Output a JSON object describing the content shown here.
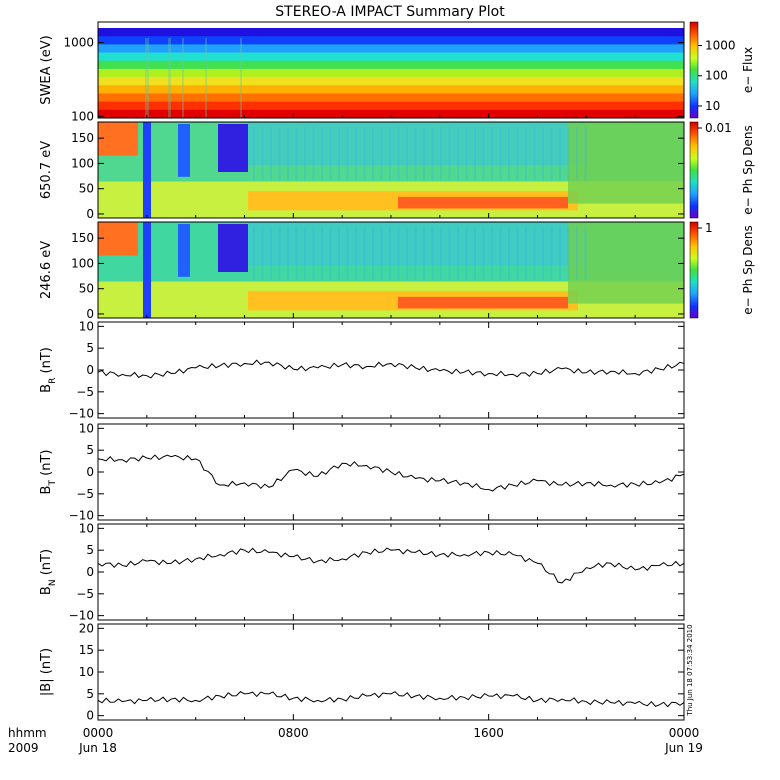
{
  "title": "STEREO-A IMPACT Summary Plot",
  "timestamp": "Thu Jun 18 07:53:34 2010",
  "chart_data": [
    {
      "type": "heatmap",
      "ylabel": "SWEA (eV)",
      "y_scale": "log",
      "ylim": [
        95,
        1900
      ],
      "yticks": [
        {
          "v": 100,
          "label": "100"
        },
        {
          "v": 1000,
          "label": "1000"
        }
      ],
      "colorbar_label": "e− Flux",
      "colorbar_scale": "log",
      "colorbar_ticks": [
        {
          "v": 10,
          "label": "10"
        },
        {
          "v": 100,
          "label": "100"
        },
        {
          "v": 1000,
          "label": "1000"
        }
      ],
      "colorbar_range": [
        4,
        6000
      ]
    },
    {
      "type": "heatmap",
      "ylabel": "650.7 eV",
      "ylim": [
        -8,
        182
      ],
      "yticks": [
        {
          "v": 0,
          "label": "0"
        },
        {
          "v": 50,
          "label": "50"
        },
        {
          "v": 100,
          "label": "100"
        },
        {
          "v": 150,
          "label": "150"
        }
      ],
      "colorbar_label": "e− Ph Sp Dens",
      "colorbar_ticks": [
        {
          "v": 0.01,
          "label": "0.01"
        }
      ]
    },
    {
      "type": "heatmap",
      "ylabel": "246.6 eV",
      "ylim": [
        -8,
        182
      ],
      "yticks": [
        {
          "v": 0,
          "label": "0"
        },
        {
          "v": 50,
          "label": "50"
        },
        {
          "v": 100,
          "label": "100"
        },
        {
          "v": 150,
          "label": "150"
        }
      ],
      "colorbar_label": "e− Ph Sp Dens",
      "colorbar_ticks": [
        {
          "v": 1,
          "label": "1"
        }
      ]
    },
    {
      "type": "line",
      "ylabel": "B",
      "ylabel_sub": "R",
      "ylabel_unit": " (nT)",
      "ylim": [
        -11,
        11
      ],
      "yticks": [
        {
          "v": -10,
          "label": "−10"
        },
        {
          "v": -5,
          "label": "−5"
        },
        {
          "v": 0,
          "label": "0"
        },
        {
          "v": 5,
          "label": "5"
        },
        {
          "v": 10,
          "label": "10"
        }
      ],
      "x": [
        0,
        1,
        2,
        3,
        4,
        5,
        6,
        7,
        8,
        9,
        10,
        11,
        12,
        13,
        14,
        15,
        16,
        17,
        18,
        19,
        20,
        21,
        22,
        23,
        24
      ],
      "values": [
        -0.5,
        -1.0,
        -1.3,
        -0.8,
        0.5,
        1.0,
        1.5,
        1.8,
        0.2,
        0.5,
        1.2,
        0.8,
        1.5,
        0.5,
        -0.2,
        -0.5,
        -0.8,
        -1.0,
        -0.8,
        0.3,
        -0.6,
        -0.3,
        -0.8,
        0.2,
        1.5
      ]
    },
    {
      "type": "line",
      "ylabel": "B",
      "ylabel_sub": "T",
      "ylabel_unit": " (nT)",
      "ylim": [
        -11,
        11
      ],
      "yticks": [
        {
          "v": -10,
          "label": "−10"
        },
        {
          "v": -5,
          "label": "−5"
        },
        {
          "v": 0,
          "label": "0"
        },
        {
          "v": 5,
          "label": "5"
        },
        {
          "v": 10,
          "label": "10"
        }
      ],
      "x": [
        0,
        1,
        2,
        3,
        4,
        5,
        6,
        7,
        8,
        9,
        10,
        11,
        12,
        13,
        14,
        15,
        16,
        17,
        18,
        19,
        20,
        21,
        22,
        23,
        24
      ],
      "values": [
        3.0,
        2.8,
        3.2,
        3.5,
        3.0,
        -3.0,
        -2.5,
        -3.5,
        0.5,
        -1.0,
        2.0,
        1.5,
        0.0,
        -1.5,
        -2.0,
        -2.5,
        -4.0,
        -3.0,
        -2.0,
        -3.0,
        -2.5,
        -3.0,
        -2.8,
        -2.5,
        -0.5
      ]
    },
    {
      "type": "line",
      "ylabel": "B",
      "ylabel_sub": "N",
      "ylabel_unit": " (nT)",
      "ylim": [
        -11,
        11
      ],
      "yticks": [
        {
          "v": -10,
          "label": "−10"
        },
        {
          "v": -5,
          "label": "−5"
        },
        {
          "v": 0,
          "label": "0"
        },
        {
          "v": 5,
          "label": "5"
        },
        {
          "v": 10,
          "label": "10"
        }
      ],
      "x": [
        0,
        1,
        2,
        3,
        4,
        5,
        6,
        7,
        8,
        9,
        10,
        11,
        12,
        13,
        14,
        15,
        16,
        17,
        18,
        19,
        20,
        21,
        22,
        23,
        24
      ],
      "values": [
        2.0,
        1.5,
        2.5,
        2.0,
        3.0,
        4.0,
        5.0,
        4.5,
        3.5,
        2.5,
        3.0,
        4.5,
        5.0,
        4.5,
        4.0,
        4.0,
        4.5,
        4.0,
        2.0,
        -2.5,
        1.0,
        2.0,
        0.5,
        1.5,
        2.0
      ]
    },
    {
      "type": "line",
      "ylabel": "|B|",
      "ylabel_unit": " (nT)",
      "ylim": [
        -1,
        21
      ],
      "yticks": [
        {
          "v": 0,
          "label": "0"
        },
        {
          "v": 5,
          "label": "5"
        },
        {
          "v": 10,
          "label": "10"
        },
        {
          "v": 15,
          "label": "15"
        },
        {
          "v": 20,
          "label": "20"
        }
      ],
      "x": [
        0,
        1,
        2,
        3,
        4,
        5,
        6,
        7,
        8,
        9,
        10,
        11,
        12,
        13,
        14,
        15,
        16,
        17,
        18,
        19,
        20,
        21,
        22,
        23,
        24
      ],
      "values": [
        3.5,
        3.2,
        3.5,
        3.8,
        3.5,
        4.5,
        5.0,
        5.0,
        4.0,
        3.5,
        3.8,
        4.5,
        5.0,
        4.5,
        4.0,
        4.2,
        4.5,
        4.5,
        3.5,
        3.8,
        3.2,
        3.0,
        2.8,
        2.5,
        3.0
      ]
    }
  ],
  "x_axis": {
    "row_labels": [
      "hhmm",
      "2009"
    ],
    "ticks": [
      {
        "v": 0,
        "time": "0000",
        "date": "Jun 18"
      },
      {
        "v": 8,
        "time": "0800",
        "date": ""
      },
      {
        "v": 16,
        "time": "1600",
        "date": ""
      },
      {
        "v": 24,
        "time": "0000",
        "date": "Jun 19"
      }
    ],
    "range": [
      0,
      24
    ]
  }
}
